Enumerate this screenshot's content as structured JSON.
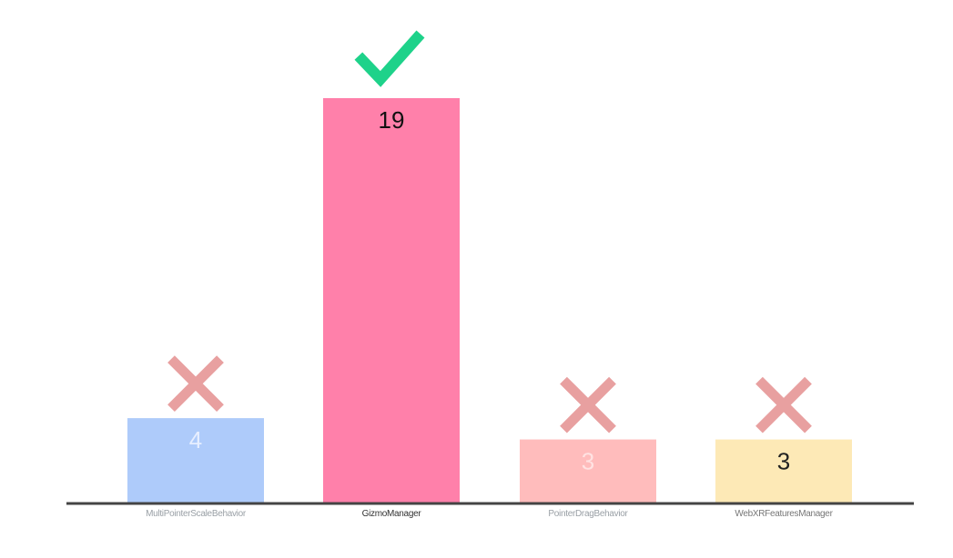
{
  "chart_data": {
    "type": "bar",
    "categories": [
      "MultiPointerScaleBehavior",
      "GizmoManager",
      "PointerDragBehavior",
      "WebXRFeaturesManager"
    ],
    "values": [
      4,
      19,
      3,
      3
    ],
    "bar_colors": [
      "#aecbfa",
      "#ff80aa",
      "#ffbcbc",
      "#fde9b6"
    ],
    "value_label_colors": [
      "#e7efff",
      "#111111",
      "#ffe2e2",
      "#222222"
    ],
    "category_label_colors": [
      "#9aa0a6",
      "#333333",
      "#9aa0a6",
      "#777777"
    ],
    "markers": [
      "cross",
      "check",
      "cross",
      "cross"
    ],
    "marker_colors": {
      "check": "#1ed28a",
      "cross": "#e8a0a0"
    },
    "axis_color": "#444444",
    "ylim": [
      0,
      19
    ],
    "title": "",
    "xlabel": "",
    "ylabel": ""
  }
}
